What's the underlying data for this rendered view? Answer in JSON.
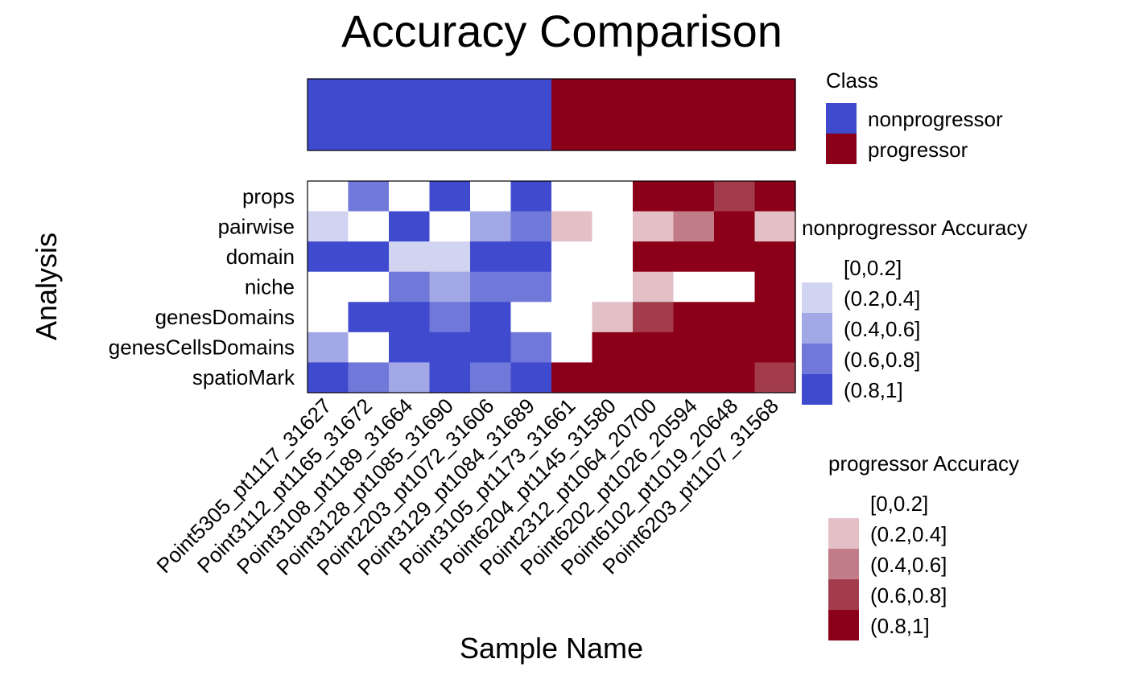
{
  "chart_data": {
    "type": "heatmap",
    "title": "Accuracy Comparison",
    "xlabel": "Sample Name",
    "ylabel": "Analysis",
    "samples": [
      "Point5305_pt1117_31627",
      "Point3112_pt1165_31672",
      "Point3108_pt1189_31664",
      "Point3128_pt1085_31690",
      "Point2203_pt1072_31606",
      "Point3129_pt1084_31689",
      "Point3105_pt1173_31661",
      "Point6204_pt1145_31580",
      "Point2312_pt1064_20700",
      "Point6202_pt1026_20594",
      "Point6102_pt1019_20648",
      "Point6203_pt1107_31568"
    ],
    "sample_class": [
      "nonprogressor",
      "nonprogressor",
      "nonprogressor",
      "nonprogressor",
      "nonprogressor",
      "nonprogressor",
      "progressor",
      "progressor",
      "progressor",
      "progressor",
      "progressor",
      "progressor"
    ],
    "analyses": [
      "props",
      "pairwise",
      "domain",
      "niche",
      "genesDomains",
      "genesCellsDomains",
      "spatioMark"
    ],
    "bins": [
      "[0,0.2]",
      "(0.2,0.4]",
      "(0.4,0.6]",
      "(0.6,0.8]",
      "(0.8,1]"
    ],
    "cells": [
      [
        0,
        3,
        0,
        4,
        0,
        4,
        0,
        0,
        4,
        4,
        3,
        4
      ],
      [
        1,
        0,
        4,
        0,
        2,
        3,
        1,
        0,
        1,
        2,
        4,
        1
      ],
      [
        4,
        4,
        1,
        1,
        4,
        4,
        0,
        0,
        4,
        4,
        4,
        4
      ],
      [
        0,
        0,
        3,
        2,
        3,
        3,
        0,
        0,
        1,
        0,
        0,
        4
      ],
      [
        0,
        4,
        4,
        3,
        4,
        0,
        0,
        1,
        3,
        4,
        4,
        4
      ],
      [
        2,
        0,
        4,
        4,
        4,
        3,
        0,
        4,
        4,
        4,
        4,
        4
      ],
      [
        4,
        3,
        2,
        4,
        3,
        4,
        4,
        4,
        4,
        4,
        4,
        3
      ]
    ],
    "legends": {
      "class": {
        "title": "Class",
        "items": [
          {
            "label": "nonprogressor",
            "color": "#3F4ACF"
          },
          {
            "label": "progressor",
            "color": "#8B0018"
          }
        ]
      },
      "nonprogressor": {
        "title": "nonprogressor Accuracy",
        "colors": [
          "#FFFFFF",
          "#D1D4F1",
          "#A2A8E6",
          "#7078D9",
          "#3F4ACF"
        ]
      },
      "progressor": {
        "title": "progressor Accuracy",
        "colors": [
          "#FFFFFF",
          "#E2C0C6",
          "#C27C88",
          "#A23C4C",
          "#8B0018"
        ]
      }
    }
  }
}
